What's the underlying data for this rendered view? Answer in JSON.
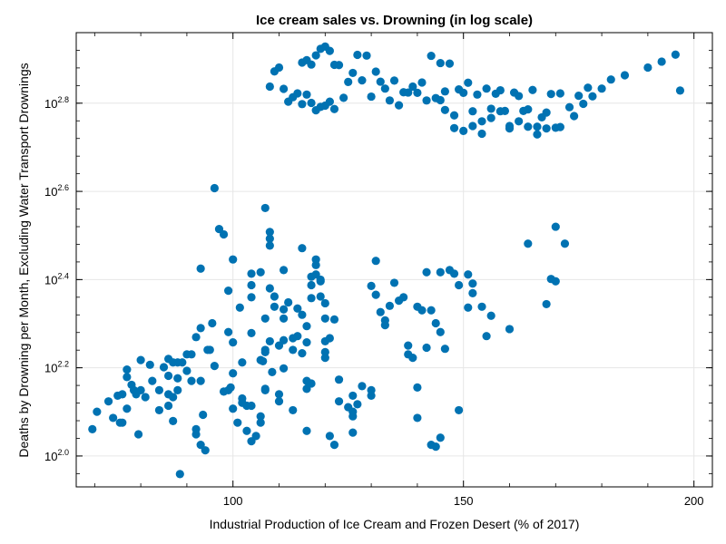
{
  "chart_data": {
    "type": "scatter",
    "title": "Ice cream sales vs. Drowning (in log scale)",
    "xlabel": "Industrial Production of Ice Cream and Frozen Desert (% of 2017)",
    "ylabel": "Deaths by Drowning per Month, Excluding Water Transport Drownings",
    "x_scale": "linear",
    "y_scale": "log10",
    "xlim": [
      66,
      204
    ],
    "ylim": [
      85.1,
      912
    ],
    "x_ticks": [
      100,
      150,
      200
    ],
    "x_tick_labels": [
      "100",
      "150",
      "200"
    ],
    "y_ticks": [
      100,
      158.5,
      251.2,
      398.1,
      631
    ],
    "y_tick_base": [
      "10",
      "10",
      "10",
      "10",
      "10"
    ],
    "y_tick_exp": [
      "2.0",
      "2.2",
      "2.4",
      "2.6",
      "2.8"
    ],
    "grid": true,
    "marker_color": "#0072b2",
    "points": [
      [
        69.5,
        115
      ],
      [
        70.5,
        126
      ],
      [
        73,
        133
      ],
      [
        74,
        122
      ],
      [
        75.5,
        119
      ],
      [
        75,
        137
      ],
      [
        76,
        119
      ],
      [
        77,
        157
      ],
      [
        77,
        151
      ],
      [
        76,
        138
      ],
      [
        77,
        128
      ],
      [
        78,
        145
      ],
      [
        78.5,
        141
      ],
      [
        79.5,
        112
      ],
      [
        79,
        138
      ],
      [
        80,
        141
      ],
      [
        80,
        165
      ],
      [
        82,
        161
      ],
      [
        81,
        136
      ],
      [
        82.5,
        148
      ],
      [
        84,
        141
      ],
      [
        84,
        127
      ],
      [
        85,
        159
      ],
      [
        86,
        166
      ],
      [
        86,
        152
      ],
      [
        86,
        138
      ],
      [
        86,
        130
      ],
      [
        87,
        120
      ],
      [
        87,
        163
      ],
      [
        88,
        163
      ],
      [
        88,
        141
      ],
      [
        87,
        136
      ],
      [
        88,
        150
      ],
      [
        89,
        163
      ],
      [
        88.5,
        91
      ],
      [
        90,
        156
      ],
      [
        90,
        170
      ],
      [
        92,
        186
      ],
      [
        91,
        148
      ],
      [
        91,
        170
      ],
      [
        92,
        115
      ],
      [
        92,
        112
      ],
      [
        93,
        148
      ],
      [
        93,
        106
      ],
      [
        93.5,
        124
      ],
      [
        94,
        103
      ],
      [
        93,
        266
      ],
      [
        93,
        195
      ],
      [
        94.5,
        174
      ],
      [
        95.5,
        200
      ],
      [
        95,
        174
      ],
      [
        96,
        160
      ],
      [
        96,
        405
      ],
      [
        97,
        327
      ],
      [
        98,
        318
      ],
      [
        98,
        140
      ],
      [
        99.5,
        143
      ],
      [
        99,
        237
      ],
      [
        99,
        191
      ],
      [
        99,
        141
      ],
      [
        100,
        279
      ],
      [
        100,
        181
      ],
      [
        100,
        154
      ],
      [
        100,
        128
      ],
      [
        101,
        119
      ],
      [
        102,
        135
      ],
      [
        101.5,
        217
      ],
      [
        102,
        132
      ],
      [
        102,
        163
      ],
      [
        103,
        114
      ],
      [
        104,
        130
      ],
      [
        103,
        130
      ],
      [
        104,
        259
      ],
      [
        104,
        244
      ],
      [
        104,
        229
      ],
      [
        104,
        108
      ],
      [
        104,
        190
      ],
      [
        105,
        111
      ],
      [
        106,
        123
      ],
      [
        106,
        119
      ],
      [
        106,
        261
      ],
      [
        106.5,
        164
      ],
      [
        107,
        142
      ],
      [
        107,
        174
      ],
      [
        106,
        165
      ],
      [
        107,
        205
      ],
      [
        107,
        172
      ],
      [
        107,
        365
      ],
      [
        108,
        311
      ],
      [
        107,
        141
      ],
      [
        108.5,
        155
      ],
      [
        108,
        182
      ],
      [
        108,
        300
      ],
      [
        108,
        240
      ],
      [
        109,
        218
      ],
      [
        109,
        230
      ],
      [
        108,
        322
      ],
      [
        110,
        133
      ],
      [
        110,
        178
      ],
      [
        111,
        183
      ],
      [
        110,
        138
      ],
      [
        111,
        158
      ],
      [
        111,
        215
      ],
      [
        111,
        205
      ],
      [
        111,
        264
      ],
      [
        112,
        223
      ],
      [
        113,
        174
      ],
      [
        113,
        185
      ],
      [
        114,
        216
      ],
      [
        113,
        127
      ],
      [
        115,
        296
      ],
      [
        115,
        209
      ],
      [
        114,
        187
      ],
      [
        116,
        197
      ],
      [
        115,
        171
      ],
      [
        116,
        114
      ],
      [
        116,
        181
      ],
      [
        116,
        148
      ],
      [
        116,
        142
      ],
      [
        117,
        146
      ],
      [
        117,
        244
      ],
      [
        117,
        255
      ],
      [
        118,
        279
      ],
      [
        118,
        271
      ],
      [
        117,
        228
      ],
      [
        118,
        258
      ],
      [
        119,
        249
      ],
      [
        119,
        230
      ],
      [
        120,
        222
      ],
      [
        120,
        172
      ],
      [
        119,
        251
      ],
      [
        120,
        205
      ],
      [
        120,
        167
      ],
      [
        120,
        182
      ],
      [
        121,
        185
      ],
      [
        122,
        204
      ],
      [
        123,
        149
      ],
      [
        121,
        111
      ],
      [
        122,
        106
      ],
      [
        123,
        133
      ],
      [
        125,
        129
      ],
      [
        126,
        123
      ],
      [
        126,
        126
      ],
      [
        126,
        113
      ],
      [
        126,
        137
      ],
      [
        127,
        131
      ],
      [
        128,
        144
      ],
      [
        130,
        141
      ],
      [
        130,
        137
      ],
      [
        130,
        243
      ],
      [
        131,
        277
      ],
      [
        131,
        232
      ],
      [
        132,
        212
      ],
      [
        133,
        198
      ],
      [
        133,
        203
      ],
      [
        134,
        219
      ],
      [
        135,
        247
      ],
      [
        136,
        225
      ],
      [
        137,
        229
      ],
      [
        138,
        170
      ],
      [
        138,
        178
      ],
      [
        139,
        167
      ],
      [
        140,
        122
      ],
      [
        140,
        143
      ],
      [
        140,
        218
      ],
      [
        141,
        214
      ],
      [
        142,
        176
      ],
      [
        142,
        261
      ],
      [
        143,
        214
      ],
      [
        143,
        106
      ],
      [
        144,
        105
      ],
      [
        145,
        110
      ],
      [
        145,
        261
      ],
      [
        144,
        200
      ],
      [
        145,
        191
      ],
      [
        146,
        175
      ],
      [
        147,
        264
      ],
      [
        148,
        259
      ],
      [
        149,
        127
      ],
      [
        149,
        244
      ],
      [
        151,
        217
      ],
      [
        151,
        258
      ],
      [
        152,
        246
      ],
      [
        152,
        234
      ],
      [
        154,
        218
      ],
      [
        155,
        187
      ],
      [
        156,
        208
      ],
      [
        160,
        194
      ],
      [
        164,
        303
      ],
      [
        169,
        252
      ],
      [
        170,
        331
      ],
      [
        172,
        303
      ],
      [
        168,
        221
      ],
      [
        170,
        249
      ],
      [
        145,
        641
      ],
      [
        146,
        671
      ],
      [
        148,
        554
      ],
      [
        150,
        546
      ],
      [
        152,
        605
      ],
      [
        154,
        538
      ],
      [
        156,
        584
      ],
      [
        158,
        675
      ],
      [
        160,
        553
      ],
      [
        162,
        655
      ],
      [
        164,
        558
      ],
      [
        166,
        536
      ],
      [
        168,
        601
      ],
      [
        171,
        557
      ],
      [
        174,
        590
      ],
      [
        176,
        629
      ],
      [
        178,
        654
      ],
      [
        180,
        681
      ],
      [
        182,
        714
      ],
      [
        185,
        730
      ],
      [
        190,
        760
      ],
      [
        193,
        784
      ],
      [
        196,
        813
      ],
      [
        197,
        674
      ],
      [
        122,
        612
      ],
      [
        124,
        649
      ],
      [
        126,
        739
      ],
      [
        128,
        711
      ],
      [
        130,
        653
      ],
      [
        132,
        706
      ],
      [
        134,
        640
      ],
      [
        136,
        624
      ],
      [
        138,
        667
      ],
      [
        140,
        666
      ],
      [
        142,
        640
      ],
      [
        144,
        648
      ],
      [
        146,
        609
      ],
      [
        148,
        592
      ],
      [
        150,
        666
      ],
      [
        152,
        560
      ],
      [
        154,
        574
      ],
      [
        156,
        613
      ],
      [
        158,
        605
      ],
      [
        160,
        560
      ],
      [
        162,
        574
      ],
      [
        164,
        611
      ],
      [
        166,
        558
      ],
      [
        168,
        553
      ],
      [
        170,
        555
      ],
      [
        115,
        628
      ],
      [
        116,
        660
      ],
      [
        117,
        632
      ],
      [
        118,
        608
      ],
      [
        119,
        619
      ],
      [
        120,
        623
      ],
      [
        121,
        636
      ],
      [
        108,
        688
      ],
      [
        109,
        745
      ],
      [
        110,
        760
      ],
      [
        111,
        680
      ],
      [
        112,
        636
      ],
      [
        113,
        651
      ],
      [
        114,
        664
      ],
      [
        115,
        780
      ],
      [
        116,
        790
      ],
      [
        117,
        772
      ],
      [
        118,
        810
      ],
      [
        119,
        838
      ],
      [
        120,
        848
      ],
      [
        121,
        829
      ],
      [
        122,
        771
      ],
      [
        123,
        770
      ],
      [
        125,
        705
      ],
      [
        127,
        812
      ],
      [
        129,
        809
      ],
      [
        131,
        744
      ],
      [
        133,
        681
      ],
      [
        135,
        710
      ],
      [
        137,
        668
      ],
      [
        139,
        688
      ],
      [
        141,
        703
      ],
      [
        143,
        808
      ],
      [
        145,
        778
      ],
      [
        147,
        776
      ],
      [
        149,
        678
      ],
      [
        151,
        702
      ],
      [
        153,
        660
      ],
      [
        155,
        681
      ],
      [
        157,
        663
      ],
      [
        159,
        606
      ],
      [
        161,
        667
      ],
      [
        163,
        606
      ],
      [
        165,
        676
      ],
      [
        167,
        586
      ],
      [
        169,
        662
      ],
      [
        171,
        664
      ],
      [
        173,
        618
      ],
      [
        175,
        656
      ],
      [
        177,
        684
      ]
    ]
  }
}
